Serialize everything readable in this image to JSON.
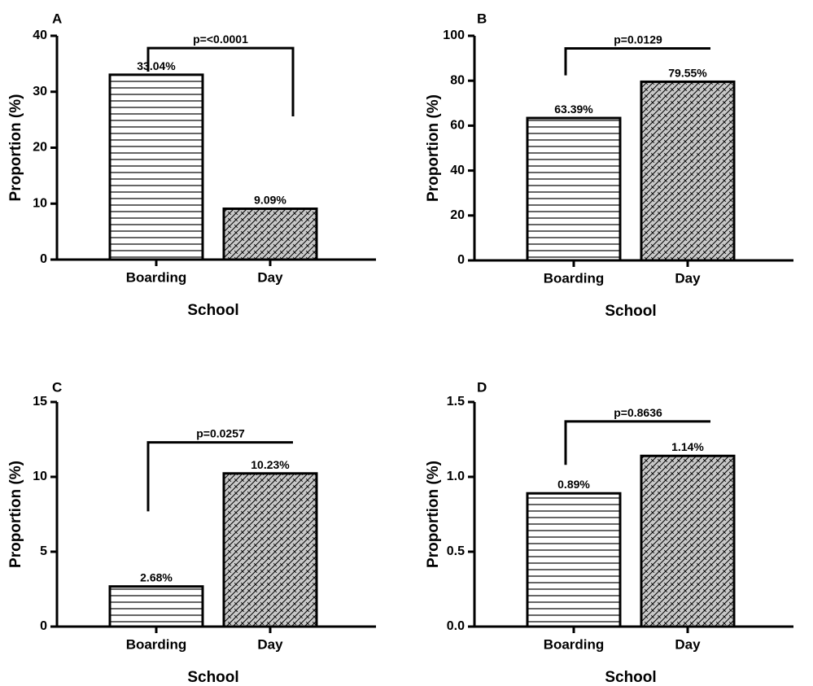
{
  "chart_data": [
    {
      "type": "bar",
      "panel": "A",
      "categories": [
        "Boarding",
        "Day"
      ],
      "values": [
        33.04,
        9.09
      ],
      "data_labels": [
        "33.04%",
        "9.09%"
      ],
      "xlabel": "School",
      "ylabel": "Proportion (%)",
      "ylim": [
        0,
        40
      ],
      "yticks": [
        "0",
        "10",
        "20",
        "30",
        "40"
      ],
      "p_value": "p=<0.0001",
      "bracket_levels": [
        33.6,
        37.8,
        25.6
      ],
      "grid": false,
      "patterns": [
        "horizontal-lines",
        "crosshatch-gray"
      ]
    },
    {
      "type": "bar",
      "panel": "B",
      "categories": [
        "Boarding",
        "Day"
      ],
      "values": [
        63.39,
        79.55
      ],
      "data_labels": [
        "63.39%",
        "79.55%"
      ],
      "xlabel": "School",
      "ylabel": "Proportion (%)",
      "ylim": [
        0,
        100
      ],
      "yticks": [
        "0",
        "20",
        "40",
        "60",
        "80",
        "100"
      ],
      "p_value": "p=0.0129",
      "bracket_levels": [
        82.4,
        94.4,
        94.4
      ],
      "grid": false,
      "patterns": [
        "horizontal-lines",
        "crosshatch-gray"
      ]
    },
    {
      "type": "bar",
      "panel": "C",
      "categories": [
        "Boarding",
        "Day"
      ],
      "values": [
        2.68,
        10.23
      ],
      "data_labels": [
        "2.68%",
        "10.23%"
      ],
      "xlabel": "School",
      "ylabel": "Proportion (%)",
      "ylim": [
        0,
        15
      ],
      "yticks": [
        "0",
        "5",
        "10",
        "15"
      ],
      "p_value": "p=0.0257",
      "bracket_levels": [
        7.7,
        12.3,
        12.3
      ],
      "grid": false,
      "patterns": [
        "horizontal-lines",
        "crosshatch-gray"
      ]
    },
    {
      "type": "bar",
      "panel": "D",
      "categories": [
        "Boarding",
        "Day"
      ],
      "values": [
        0.89,
        1.14
      ],
      "data_labels": [
        "0.89%",
        "1.14%"
      ],
      "xlabel": "School",
      "ylabel": "Proportion (%)",
      "ylim": [
        0,
        1.5
      ],
      "yticks": [
        "0.0",
        "0.5",
        "1.0",
        "1.5"
      ],
      "p_value": "p=0.8636",
      "bracket_levels": [
        1.08,
        1.37,
        1.37
      ],
      "grid": false,
      "patterns": [
        "horizontal-lines",
        "crosshatch-gray"
      ]
    }
  ],
  "colors": {
    "axis": "#000000",
    "bar_fill_day": "#c8c8c8",
    "bar_lines": "#000000",
    "background": "#ffffff"
  }
}
